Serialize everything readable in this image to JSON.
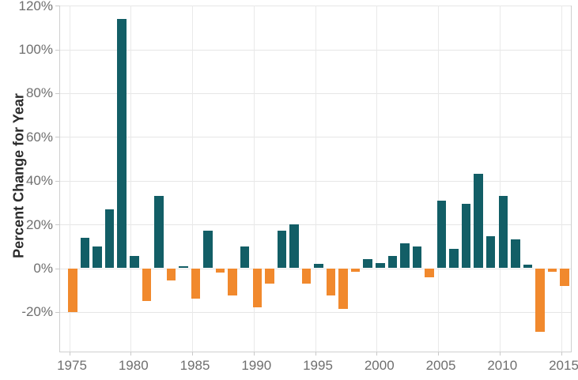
{
  "chart_data": {
    "type": "bar",
    "title": "",
    "xlabel": "",
    "ylabel": "Percent Change for Year",
    "legend_position": "none",
    "grid": true,
    "ylim": [
      -37,
      118
    ],
    "positive_color": "#125E66",
    "negative_color": "#F1892D",
    "x": [
      1975,
      1976,
      1977,
      1978,
      1979,
      1980,
      1981,
      1982,
      1983,
      1984,
      1985,
      1986,
      1987,
      1988,
      1989,
      1990,
      1991,
      1992,
      1993,
      1994,
      1995,
      1996,
      1997,
      1998,
      1999,
      2000,
      2001,
      2002,
      2003,
      2004,
      2005,
      2006,
      2007,
      2008,
      2009,
      2010,
      2011,
      2012,
      2013,
      2014,
      2015
    ],
    "values": [
      -20,
      14,
      10,
      27,
      114,
      5.5,
      -15,
      33,
      -5.5,
      1,
      -14,
      17,
      -2,
      -12.5,
      10,
      -18,
      -7,
      17,
      20,
      -7,
      2,
      -12.5,
      -18.5,
      -1.5,
      4,
      2.5,
      5.5,
      11.5,
      10,
      -4,
      31,
      9,
      29.5,
      43,
      14.5,
      33,
      13,
      1.5,
      -29,
      -1.5,
      -8
    ],
    "y_ticks": [
      {
        "value": 120,
        "label": "120%"
      },
      {
        "value": 100,
        "label": "100%"
      },
      {
        "value": 80,
        "label": "80%"
      },
      {
        "value": 60,
        "label": "60%"
      },
      {
        "value": 40,
        "label": "40%"
      },
      {
        "value": 20,
        "label": "20%"
      },
      {
        "value": 0,
        "label": "0%"
      },
      {
        "value": -20,
        "label": "-20%"
      }
    ],
    "x_ticks": [
      {
        "value": 1975,
        "label": "1975"
      },
      {
        "value": 1980,
        "label": "1980"
      },
      {
        "value": 1985,
        "label": "1985"
      },
      {
        "value": 1990,
        "label": "1990"
      },
      {
        "value": 1995,
        "label": "1995"
      },
      {
        "value": 2000,
        "label": "2000"
      },
      {
        "value": 2005,
        "label": "2005"
      },
      {
        "value": 2010,
        "label": "2010"
      },
      {
        "value": 2015,
        "label": "2015"
      }
    ]
  }
}
